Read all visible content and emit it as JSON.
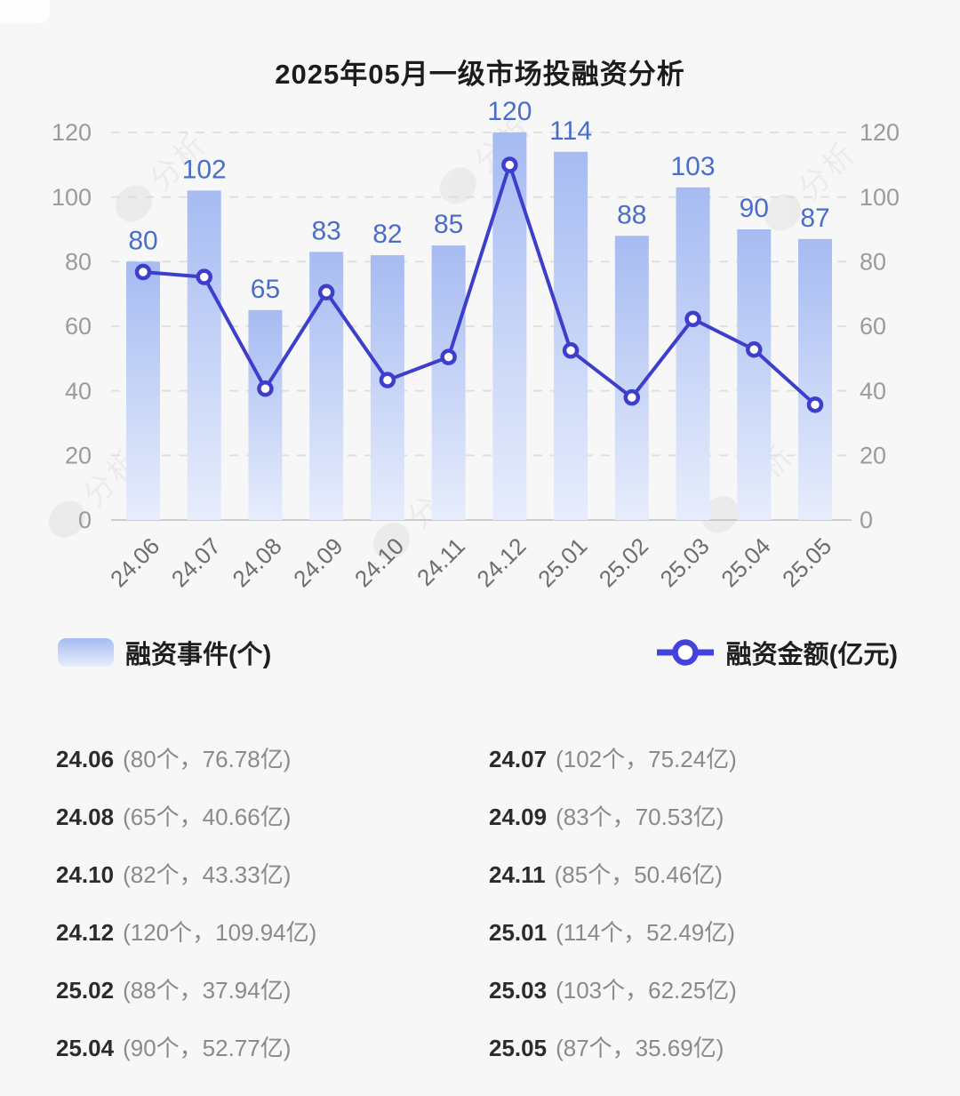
{
  "title": "2025年05月一级市场投融资分析",
  "watermark_text": "分析",
  "colors": {
    "background": "#f7f7f7",
    "title": "#1c1c1c",
    "bar_top": "#a6bbf2",
    "bar_bottom": "#e7edfc",
    "bar_label": "#4a6ec8",
    "line": "#3e3ecd",
    "legend_marker": "#4242dd",
    "marker_fill": "#ffffff",
    "grid": "#dedede",
    "axis_line": "#bfbfbf",
    "y_label": "#9b9b9b",
    "x_label": "#6e6e6e",
    "legend_text": "#1f1f1f",
    "stat_period": "#2b2b2b",
    "stat_detail": "#8a8a8a",
    "watermark": "#2a2a3a"
  },
  "chart_data": {
    "type": "combo-bar-line",
    "title": "2025年05月一级市场投融资分析",
    "categories": [
      "24.06",
      "24.07",
      "24.08",
      "24.09",
      "24.10",
      "24.11",
      "24.12",
      "25.01",
      "25.02",
      "25.03",
      "25.04",
      "25.05"
    ],
    "series": [
      {
        "name": "融资事件(个)",
        "type": "bar",
        "values": [
          80,
          102,
          65,
          83,
          82,
          85,
          120,
          114,
          88,
          103,
          90,
          87
        ]
      },
      {
        "name": "融资金额(亿元)",
        "type": "line",
        "values": [
          76.78,
          75.24,
          40.66,
          70.53,
          43.33,
          50.46,
          109.94,
          52.49,
          37.94,
          62.25,
          52.77,
          35.69
        ]
      }
    ],
    "ylim": [
      0,
      120
    ],
    "yticks": [
      0,
      20,
      40,
      60,
      80,
      100,
      120
    ],
    "y_axis_sides": [
      "left",
      "right"
    ],
    "grid": "dashed-horizontal",
    "legend_position": "below-chart",
    "bar_value_labels_shown": true
  },
  "stats": [
    {
      "period": "24.06",
      "detail": "(80个，76.78亿)"
    },
    {
      "period": "24.07",
      "detail": "(102个，75.24亿)"
    },
    {
      "period": "24.08",
      "detail": "(65个，40.66亿)"
    },
    {
      "period": "24.09",
      "detail": "(83个，70.53亿)"
    },
    {
      "period": "24.10",
      "detail": "(82个，43.33亿)"
    },
    {
      "period": "24.11",
      "detail": "(85个，50.46亿)"
    },
    {
      "period": "24.12",
      "detail": "(120个，109.94亿)"
    },
    {
      "period": "25.01",
      "detail": "(114个，52.49亿)"
    },
    {
      "period": "25.02",
      "detail": "(88个，37.94亿)"
    },
    {
      "period": "25.03",
      "detail": "(103个，62.25亿)"
    },
    {
      "period": "25.04",
      "detail": "(90个，52.77亿)"
    },
    {
      "period": "25.05",
      "detail": "(87个，35.69亿)"
    }
  ]
}
